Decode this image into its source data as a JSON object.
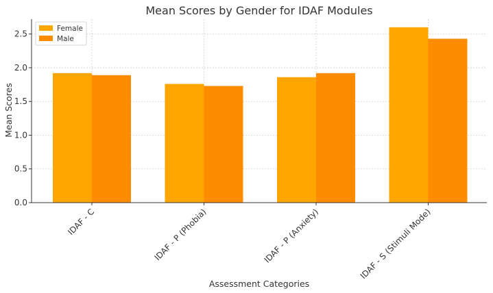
{
  "chart_data": {
    "type": "bar",
    "title": "Mean Scores by Gender for IDAF Modules",
    "xlabel": "Assessment Categories",
    "ylabel": "Mean Scores",
    "categories": [
      "IDAF - C",
      "IDAF - P (Phobia)",
      "IDAF - P (Anxiety)",
      "IDAF - S (Stimuli Mode)"
    ],
    "series": [
      {
        "name": "Female",
        "values": [
          1.92,
          1.76,
          1.86,
          2.6
        ],
        "color": "#FFA500"
      },
      {
        "name": "Male",
        "values": [
          1.89,
          1.73,
          1.92,
          2.43
        ],
        "color": "#FF8C00"
      }
    ],
    "ylim": [
      0,
      2.72
    ],
    "yticks": [
      0.0,
      0.5,
      1.0,
      1.5,
      2.0,
      2.5
    ],
    "ytick_labels": [
      "0.0",
      "0.5",
      "1.0",
      "1.5",
      "2.0",
      "2.5"
    ],
    "grid": true,
    "legend_position": "top-left"
  }
}
